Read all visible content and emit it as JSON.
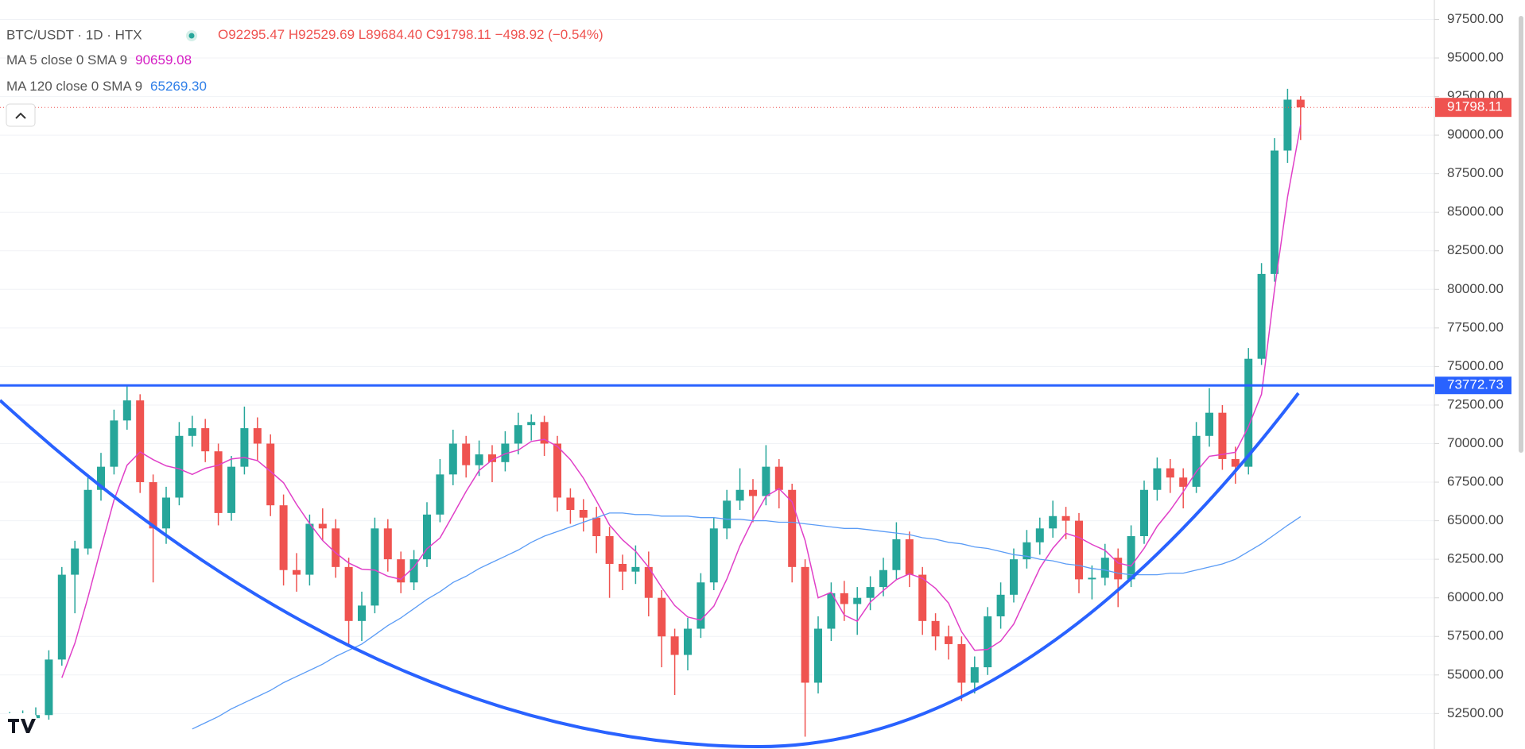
{
  "header": {
    "symbol": "BTC/USDT · 1D · HTX",
    "ohlc": [
      "O92295.47",
      "H92529.69",
      "L89684.40",
      "C91798.11",
      "−498.92 (−0.54%)"
    ],
    "ma_values": [
      "90659.08",
      "65269.30"
    ]
  },
  "chart_data": {
    "type": "candlestick",
    "open": [
      51800,
      52000,
      52200,
      52400,
      56000,
      61500,
      63200,
      67000,
      68500,
      71500,
      72800,
      67500,
      64500,
      66500,
      70500,
      71000,
      69500,
      65500,
      68500,
      71000,
      70000,
      66000,
      61800,
      61500,
      64800,
      64500,
      62000,
      58500,
      59500,
      64500,
      62500,
      61000,
      62500,
      65400,
      68000,
      70000,
      68600,
      69300,
      68800,
      70000,
      71200,
      71400,
      70000,
      66500,
      65700,
      65200,
      64000,
      62200,
      61700,
      62000,
      60000,
      57500,
      56300,
      58000,
      61000,
      64500,
      66300,
      67000,
      66600,
      68500,
      67000,
      62000,
      54500,
      58000,
      60300,
      59600,
      60000,
      60700,
      61800,
      63800,
      61500,
      58500,
      57500,
      57000,
      54500,
      55500,
      58800,
      60200,
      62500,
      63600,
      64500,
      65300,
      65000,
      61200,
      61300,
      62600,
      61200,
      64000,
      67000,
      68400,
      67800,
      67200,
      70500,
      72000,
      69000,
      68500,
      75500,
      81000,
      89000,
      92295.47
    ],
    "high": [
      52600,
      52700,
      52900,
      56600,
      62000,
      63700,
      67800,
      69400,
      72200,
      73800,
      73200,
      68000,
      67200,
      71400,
      71800,
      71600,
      70000,
      69200,
      72400,
      71700,
      70600,
      66700,
      62900,
      65400,
      65800,
      65100,
      62600,
      60400,
      65200,
      65100,
      63000,
      63100,
      66200,
      69000,
      70900,
      70500,
      70200,
      69900,
      70800,
      72000,
      71900,
      71800,
      70500,
      67100,
      66400,
      65900,
      64600,
      62800,
      63400,
      63000,
      60500,
      58000,
      58700,
      61600,
      65200,
      67000,
      68400,
      67700,
      69900,
      69000,
      67400,
      62500,
      58800,
      61000,
      61100,
      60700,
      61400,
      62600,
      64900,
      64300,
      62000,
      59000,
      58200,
      57500,
      56200,
      59400,
      61000,
      63200,
      64400,
      65200,
      66300,
      65900,
      65500,
      62100,
      63500,
      63200,
      64700,
      67600,
      69100,
      69000,
      68400,
      71400,
      73600,
      72500,
      69800,
      76200,
      81700,
      89800,
      93000,
      92529.69
    ],
    "low": [
      51200,
      51500,
      51800,
      52100,
      55600,
      59000,
      62800,
      66300,
      68000,
      70900,
      66800,
      61000,
      63500,
      66000,
      69800,
      68800,
      64700,
      65000,
      68000,
      68900,
      65300,
      60800,
      60400,
      60800,
      63700,
      61300,
      56900,
      57200,
      59000,
      61700,
      60300,
      60500,
      62000,
      64900,
      67300,
      67800,
      67900,
      67500,
      68200,
      69300,
      70200,
      69200,
      65600,
      64800,
      64300,
      62900,
      60000,
      60500,
      60900,
      58800,
      55500,
      53700,
      55300,
      57400,
      60500,
      63800,
      65700,
      64900,
      66000,
      65800,
      61000,
      51000,
      53800,
      57200,
      58500,
      57600,
      59200,
      60100,
      61200,
      60700,
      57600,
      56600,
      56000,
      53300,
      53800,
      55000,
      58000,
      59700,
      61900,
      62800,
      63900,
      63800,
      60300,
      59900,
      60800,
      59400,
      60700,
      63500,
      66300,
      66800,
      65800,
      66800,
      69800,
      68300,
      67400,
      68000,
      75100,
      80500,
      88200,
      89684.4
    ],
    "close": [
      52000,
      52200,
      52400,
      56000,
      61500,
      63200,
      67000,
      68500,
      71500,
      72800,
      67500,
      64500,
      66500,
      70500,
      71000,
      69500,
      65500,
      68500,
      71000,
      70000,
      66000,
      61800,
      61500,
      64800,
      64500,
      62000,
      58500,
      59500,
      64500,
      62500,
      61000,
      62500,
      65400,
      68000,
      70000,
      68600,
      69300,
      68800,
      70000,
      71200,
      71400,
      70000,
      66500,
      65700,
      65200,
      64000,
      62200,
      61700,
      62000,
      60000,
      57500,
      56300,
      58000,
      61000,
      64500,
      66300,
      67000,
      66600,
      68500,
      67000,
      62000,
      54500,
      58000,
      60300,
      59600,
      60000,
      60700,
      61800,
      63800,
      61500,
      58500,
      57500,
      57000,
      54500,
      55500,
      58800,
      60200,
      62500,
      63600,
      64500,
      65300,
      65000,
      61200,
      61300,
      62600,
      61200,
      64000,
      67000,
      68400,
      67800,
      67200,
      70500,
      72000,
      69000,
      68500,
      75500,
      81000,
      89000,
      92300,
      91798.11
    ],
    "up_color": "#26a69a",
    "down_color": "#ef5350",
    "series": [
      {
        "name": "MA 5 close 0 SMA 9",
        "color": "#e040c8",
        "values": [
          null,
          null,
          null,
          null,
          54820,
          57060,
          60020,
          63240,
          66340,
          68600,
          69460,
          68960,
          68560,
          68360,
          68000,
          68400,
          68600,
          69000,
          69100,
          68900,
          68200,
          67460,
          66060,
          64820,
          63720,
          62920,
          62260,
          61860,
          61800,
          61400,
          61200,
          62000,
          63180,
          63880,
          65380,
          66900,
          68260,
          68940,
          69340,
          69580,
          70140,
          70280,
          69820,
          68960,
          67760,
          66280,
          64720,
          63760,
          63020,
          61980,
          60680,
          59500,
          58760,
          58560,
          59460,
          61220,
          63360,
          65080,
          66580,
          67080,
          66220,
          63720,
          60000,
          60360,
          58880,
          58480,
          59720,
          60480,
          61180,
          61560,
          61260,
          60620,
          59660,
          57800,
          56600,
          56660,
          57200,
          58300,
          60120,
          61920,
          63220,
          64180,
          63920,
          63460,
          63080,
          62260,
          62060,
          63220,
          64640,
          65680,
          66880,
          68180,
          69180,
          69300,
          69440,
          71100,
          73200,
          80000,
          86000,
          90659.08
        ]
      },
      {
        "name": "MA 120 close 0 SMA 9",
        "color": "#5b9cf6",
        "values": [
          null,
          null,
          null,
          null,
          null,
          null,
          null,
          null,
          null,
          null,
          null,
          null,
          null,
          null,
          51500,
          51900,
          52300,
          52800,
          53200,
          53600,
          54000,
          54500,
          54900,
          55300,
          55700,
          56200,
          56600,
          57000,
          57600,
          58200,
          58700,
          59300,
          59900,
          60400,
          61000,
          61400,
          61900,
          62300,
          62700,
          63100,
          63600,
          64000,
          64300,
          64600,
          64900,
          65200,
          65500,
          65500,
          65400,
          65400,
          65300,
          65300,
          65300,
          65200,
          65200,
          65100,
          65100,
          65000,
          65000,
          64900,
          64900,
          64800,
          64700,
          64600,
          64500,
          64500,
          64400,
          64300,
          64200,
          64100,
          63900,
          63800,
          63600,
          63500,
          63300,
          63200,
          63000,
          62800,
          62700,
          62500,
          62400,
          62200,
          62100,
          61900,
          61800,
          61600,
          61500,
          61500,
          61500,
          61600,
          61600,
          61800,
          62000,
          62200,
          62500,
          63000,
          63500,
          64100,
          64700,
          65269.3
        ]
      }
    ],
    "ylim": [
      50200,
      98760
    ],
    "yticks": [
      {
        "value": 52500,
        "label": "52500.00"
      },
      {
        "value": 55000,
        "label": "55000.00"
      },
      {
        "value": 57500,
        "label": "57500.00"
      },
      {
        "value": 60000,
        "label": "60000.00"
      },
      {
        "value": 62500,
        "label": "62500.00"
      },
      {
        "value": 65000,
        "label": "65000.00"
      },
      {
        "value": 67500,
        "label": "67500.00"
      },
      {
        "value": 70000,
        "label": "70000.00"
      },
      {
        "value": 72500,
        "label": "72500.00"
      },
      {
        "value": 75000,
        "label": "75000.00"
      },
      {
        "value": 77500,
        "label": "77500.00"
      },
      {
        "value": 80000,
        "label": "80000.00"
      },
      {
        "value": 82500,
        "label": "82500.00"
      },
      {
        "value": 85000,
        "label": "85000.00"
      },
      {
        "value": 87500,
        "label": "87500.00"
      },
      {
        "value": 90000,
        "label": "90000.00"
      },
      {
        "value": 92500,
        "label": "92500.00"
      },
      {
        "value": 95000,
        "label": "95000.00"
      },
      {
        "value": 97500,
        "label": "97500.00"
      }
    ],
    "grid": true,
    "hline": {
      "value": 73772.73,
      "color": "#2962ff"
    }
  }
}
